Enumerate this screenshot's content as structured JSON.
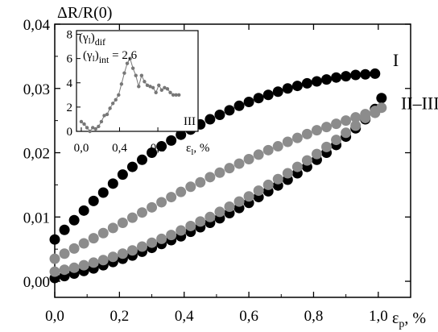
{
  "chart_data": [
    {
      "type": "scatter",
      "ylabel": "ΔR/R(0)",
      "xlabel": "ε",
      "xlabel_sub": "p",
      "xlabel_unit": ", %",
      "xlim": [
        0.0,
        1.1
      ],
      "ylim": [
        -0.0025,
        0.04
      ],
      "xticks": [
        0.0,
        0.2,
        0.4,
        0.6,
        0.8,
        1.0
      ],
      "xtick_labels": [
        "0,0",
        "0,2",
        "0,4",
        "0,6",
        "0,8",
        "1,0"
      ],
      "yticks": [
        0.0,
        0.01,
        0.02,
        0.03,
        0.04
      ],
      "ytick_labels": [
        "0,00",
        "0,01",
        "0,02",
        "0,03",
        "0,04"
      ],
      "curve_labels": [
        {
          "text": "I",
          "x": 1.045,
          "y": 0.0335
        },
        {
          "text": "II–III",
          "x": 1.07,
          "y": 0.0268
        }
      ],
      "series": [
        {
          "id": "I-upper",
          "color": "#000000",
          "x": [
            0.0,
            0.03,
            0.06,
            0.09,
            0.12,
            0.15,
            0.18,
            0.21,
            0.24,
            0.27,
            0.3,
            0.33,
            0.36,
            0.39,
            0.42,
            0.45,
            0.48,
            0.51,
            0.54,
            0.57,
            0.6,
            0.63,
            0.66,
            0.69,
            0.72,
            0.75,
            0.78,
            0.81,
            0.84,
            0.87,
            0.9,
            0.93,
            0.96,
            0.99
          ],
          "y": [
            0.0065,
            0.008,
            0.0095,
            0.011,
            0.0125,
            0.0138,
            0.0152,
            0.0166,
            0.0178,
            0.0189,
            0.02,
            0.021,
            0.0219,
            0.0228,
            0.0236,
            0.0244,
            0.0252,
            0.0259,
            0.0266,
            0.0273,
            0.0279,
            0.0285,
            0.029,
            0.0295,
            0.03,
            0.0304,
            0.0308,
            0.0311,
            0.0314,
            0.0317,
            0.0319,
            0.0321,
            0.0322,
            0.0323
          ]
        },
        {
          "id": "I-lower",
          "color": "#000000",
          "x": [
            0.0,
            0.03,
            0.06,
            0.09,
            0.12,
            0.15,
            0.18,
            0.21,
            0.24,
            0.27,
            0.3,
            0.33,
            0.36,
            0.39,
            0.42,
            0.45,
            0.48,
            0.51,
            0.54,
            0.57,
            0.6,
            0.63,
            0.66,
            0.69,
            0.72,
            0.75,
            0.78,
            0.81,
            0.84,
            0.87,
            0.9,
            0.93,
            0.96,
            0.99,
            1.01
          ],
          "y": [
            0.0005,
            0.0008,
            0.0012,
            0.0016,
            0.002,
            0.0025,
            0.003,
            0.0035,
            0.004,
            0.0046,
            0.0052,
            0.0058,
            0.0064,
            0.007,
            0.0077,
            0.0084,
            0.0091,
            0.0098,
            0.0106,
            0.0114,
            0.0122,
            0.0131,
            0.014,
            0.0149,
            0.0158,
            0.0168,
            0.0178,
            0.0189,
            0.02,
            0.0212,
            0.0225,
            0.0238,
            0.0252,
            0.0268,
            0.0285
          ]
        },
        {
          "id": "II-III-upper",
          "color": "#8c8c8c",
          "x": [
            0.0,
            0.03,
            0.06,
            0.09,
            0.12,
            0.15,
            0.18,
            0.21,
            0.24,
            0.27,
            0.3,
            0.33,
            0.36,
            0.39,
            0.42,
            0.45,
            0.48,
            0.51,
            0.54,
            0.57,
            0.6,
            0.63,
            0.66,
            0.69,
            0.72,
            0.75,
            0.78,
            0.81,
            0.84,
            0.87,
            0.9,
            0.93,
            0.96,
            0.99
          ],
          "y": [
            0.0035,
            0.0043,
            0.0051,
            0.0059,
            0.0067,
            0.0075,
            0.0083,
            0.0091,
            0.0099,
            0.0107,
            0.0115,
            0.0123,
            0.0131,
            0.0139,
            0.0147,
            0.0154,
            0.0162,
            0.0169,
            0.0176,
            0.0183,
            0.019,
            0.0197,
            0.0204,
            0.021,
            0.0217,
            0.0223,
            0.0229,
            0.0235,
            0.024,
            0.0245,
            0.025,
            0.0255,
            0.026,
            0.0265
          ]
        },
        {
          "id": "II-III-lower",
          "color": "#8c8c8c",
          "x": [
            0.0,
            0.03,
            0.06,
            0.09,
            0.12,
            0.15,
            0.18,
            0.21,
            0.24,
            0.27,
            0.3,
            0.33,
            0.36,
            0.39,
            0.42,
            0.45,
            0.48,
            0.51,
            0.54,
            0.57,
            0.6,
            0.63,
            0.66,
            0.69,
            0.72,
            0.75,
            0.78,
            0.81,
            0.84,
            0.87,
            0.9,
            0.93,
            0.96,
            0.99,
            1.01
          ],
          "y": [
            0.0015,
            0.0018,
            0.0021,
            0.0025,
            0.0029,
            0.0033,
            0.0038,
            0.0043,
            0.0048,
            0.0054,
            0.006,
            0.0066,
            0.0072,
            0.0079,
            0.0086,
            0.0093,
            0.01,
            0.0108,
            0.0116,
            0.0124,
            0.0132,
            0.0141,
            0.015,
            0.0159,
            0.0168,
            0.0178,
            0.0188,
            0.0198,
            0.0209,
            0.022,
            0.0231,
            0.0242,
            0.0254,
            0.0262,
            0.027
          ]
        }
      ]
    },
    {
      "type": "line",
      "panel_label": "III",
      "ylabel": "(γ",
      "ylabel_sub_l": "l",
      "ylabel_close": ")",
      "ylabel_sub": "dif",
      "annotation": "(γ",
      "annotation_sub_l": "l",
      "annotation_close": ")",
      "annotation_sub": "int",
      "annotation_value": " = 2,6",
      "xlabel": "ε",
      "xlabel_sub": "l",
      "xlabel_unit": ", %",
      "xlim": [
        -0.05,
        1.22
      ],
      "ylim": [
        0,
        8.3
      ],
      "xticks": [
        0.0,
        0.4,
        0.8
      ],
      "xtick_labels": [
        "0,0",
        "0,4",
        "0,8"
      ],
      "yticks": [
        0,
        2,
        4,
        6,
        8
      ],
      "ytick_labels": [
        "0",
        "2",
        "4",
        "6",
        "8"
      ],
      "series": [
        {
          "id": "inset",
          "color": "#777777",
          "x": [
            0.0,
            0.03,
            0.06,
            0.09,
            0.12,
            0.15,
            0.18,
            0.21,
            0.24,
            0.27,
            0.3,
            0.33,
            0.36,
            0.39,
            0.42,
            0.45,
            0.48,
            0.51,
            0.54,
            0.57,
            0.6,
            0.63,
            0.66,
            0.69,
            0.72,
            0.75,
            0.78,
            0.81,
            0.84,
            0.87,
            0.9,
            0.93,
            0.96,
            0.99,
            1.02
          ],
          "y": [
            0.8,
            0.6,
            0.3,
            0.0,
            0.3,
            0.2,
            0.4,
            0.8,
            1.3,
            1.4,
            1.9,
            2.3,
            2.6,
            3.0,
            3.9,
            4.8,
            5.6,
            6.0,
            5.2,
            4.6,
            3.7,
            4.6,
            4.1,
            3.8,
            3.7,
            3.6,
            3.2,
            3.8,
            3.4,
            3.6,
            3.5,
            3.2,
            3.0,
            3.0,
            3.0
          ]
        }
      ]
    }
  ]
}
